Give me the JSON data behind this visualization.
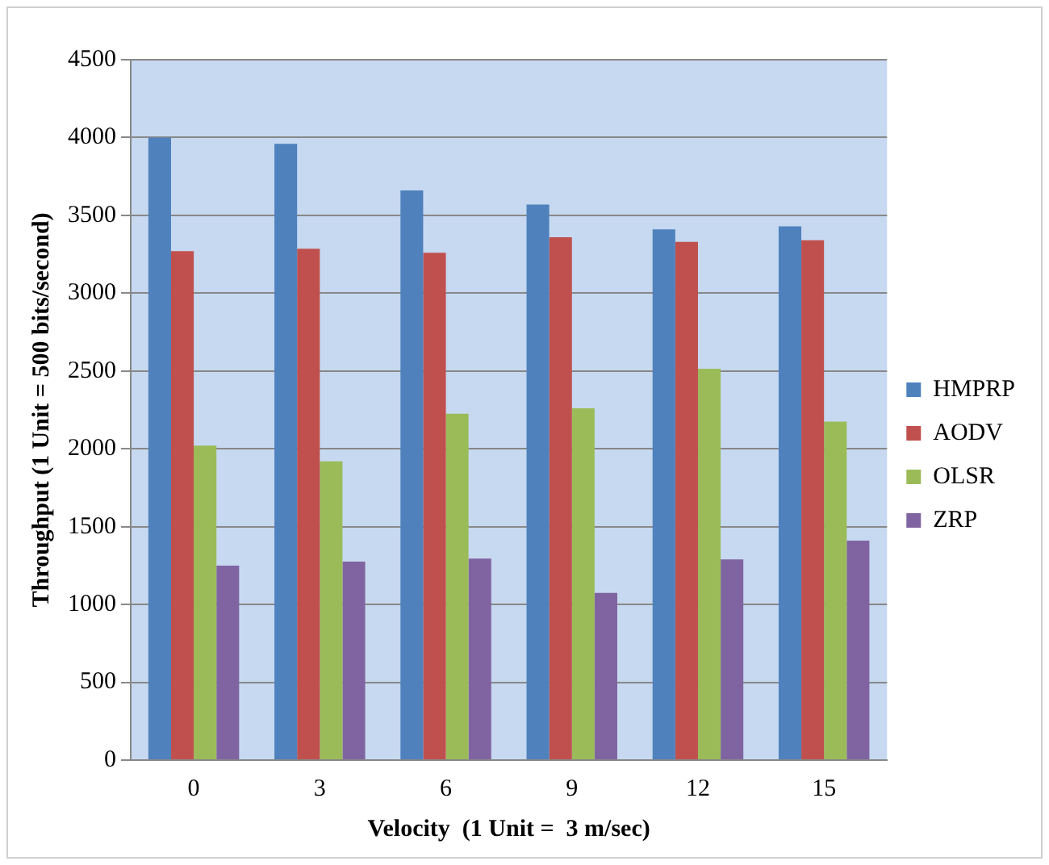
{
  "chart_data": {
    "type": "bar",
    "xlabel": "Velocity  (1 Unit =  3 m/sec)",
    "ylabel": "Throughput (1 Unit = 500 bits/second)",
    "categories": [
      "0",
      "3",
      "6",
      "9",
      "12",
      "15"
    ],
    "series": [
      {
        "name": "HMPRP",
        "color": "#4f81bd",
        "values": [
          4000,
          3960,
          3660,
          3570,
          3410,
          3430
        ]
      },
      {
        "name": "AODV",
        "color": "#c0504d",
        "values": [
          3270,
          3285,
          3260,
          3360,
          3330,
          3340
        ]
      },
      {
        "name": "OLSR",
        "color": "#9bbb59",
        "values": [
          2020,
          1920,
          2225,
          2260,
          2515,
          2175
        ]
      },
      {
        "name": "ZRP",
        "color": "#8064a2",
        "values": [
          1250,
          1275,
          1295,
          1075,
          1290,
          1410
        ]
      }
    ],
    "ylim": [
      0,
      4500
    ],
    "yticks": [
      0,
      500,
      1000,
      1500,
      2000,
      2500,
      3000,
      3500,
      4000,
      4500
    ],
    "grid": "y",
    "legend": "right"
  }
}
